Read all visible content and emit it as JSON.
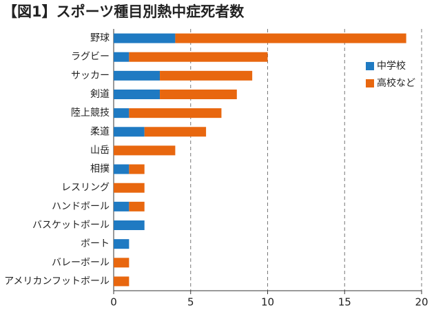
{
  "chart_data": {
    "type": "barh_stacked",
    "title": "【図1】スポーツ種目別熱中症死者数",
    "categories": [
      "野球",
      "ラグビー",
      "サッカー",
      "剣道",
      "陸上競技",
      "柔道",
      "山岳",
      "相撲",
      "レスリング",
      "ハンドボール",
      "バスケットボール",
      "ボート",
      "バレーボール",
      "アメリカンフットボール"
    ],
    "series": [
      {
        "name": "中学校",
        "color": "#1f7ac2",
        "values": [
          4,
          1,
          3,
          3,
          1,
          2,
          0,
          1,
          0,
          1,
          2,
          1,
          0,
          0
        ]
      },
      {
        "name": "高校など",
        "color": "#e8670f",
        "values": [
          15,
          9,
          6,
          5,
          6,
          4,
          4,
          1,
          2,
          1,
          0,
          0,
          1,
          1
        ]
      }
    ],
    "xlim": [
      0,
      20
    ],
    "xticks": [
      0,
      5,
      10,
      15,
      20
    ],
    "grid": true,
    "legend": "right"
  }
}
